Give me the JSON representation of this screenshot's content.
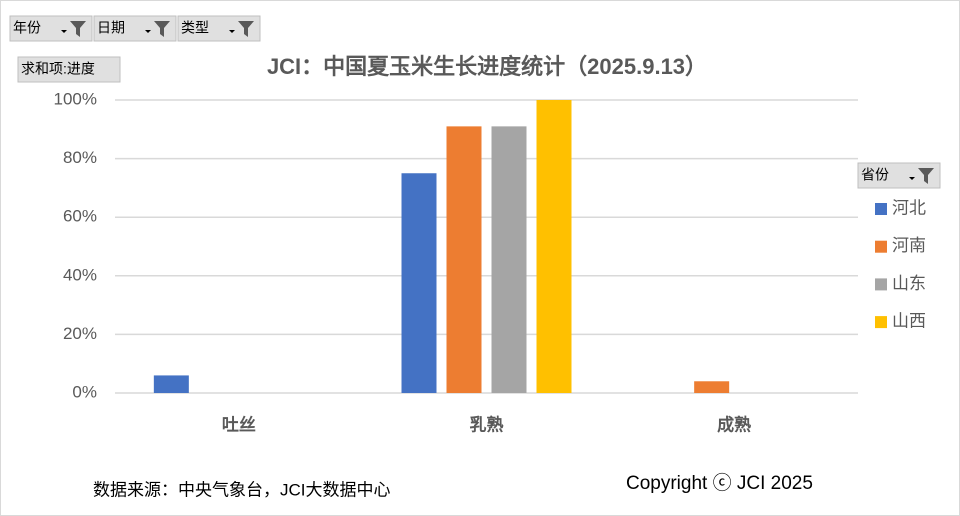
{
  "chart_data": {
    "type": "bar",
    "title": "JCI：中国夏玉米生长进度统计（2025.9.13）",
    "filters": [
      "年份",
      "日期",
      "类型"
    ],
    "value_field": "求和项:进度",
    "legend_title": "省份",
    "categories": [
      "吐丝",
      "乳熟",
      "成熟"
    ],
    "series": [
      {
        "name": "河北",
        "color": "#4472c4",
        "values": [
          6,
          75,
          null
        ]
      },
      {
        "name": "河南",
        "color": "#ed7d31",
        "values": [
          null,
          91,
          4
        ]
      },
      {
        "name": "山东",
        "color": "#a5a5a5",
        "values": [
          null,
          91,
          null
        ]
      },
      {
        "name": "山西",
        "color": "#ffc000",
        "values": [
          null,
          100,
          null
        ]
      }
    ],
    "ylim": [
      0,
      100
    ],
    "yticks": [
      {
        "value": 0,
        "label": "0%"
      },
      {
        "value": 20,
        "label": "20%"
      },
      {
        "value": 40,
        "label": "40%"
      },
      {
        "value": 60,
        "label": "60%"
      },
      {
        "value": 80,
        "label": "80%"
      },
      {
        "value": 100,
        "label": "100%"
      }
    ],
    "grid": true,
    "legend": "right",
    "source": "数据来源：中央气象台，JCI大数据中心",
    "copyright": "Copyright ⓒ JCI 2025"
  }
}
